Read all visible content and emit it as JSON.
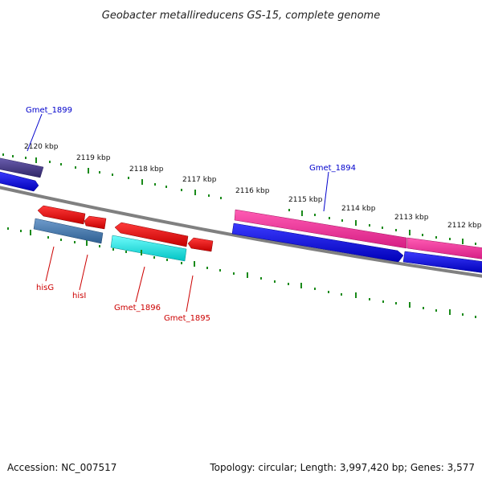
{
  "title": "Geobacter metallireducens GS-15, complete genome",
  "footer": {
    "accession": "Accession: NC_007517",
    "summary": "Topology: circular; Length: 3,997,420 bp; Genes: 3,577"
  },
  "scale_labels": [
    "2120 kbp",
    "2119 kbp",
    "2118 kbp",
    "2117 kbp",
    "2116 kbp",
    "2115 kbp",
    "2114 kbp",
    "2113 kbp",
    "2112 kbp"
  ],
  "genes": {
    "gmet_1899": {
      "label": "Gmet_1899",
      "color": "#0000cc"
    },
    "gmet_1894": {
      "label": "Gmet_1894",
      "color": "#0000cc"
    },
    "hisG": {
      "label": "hisG",
      "color": "#cc0000"
    },
    "hisI": {
      "label": "hisI",
      "color": "#cc0000"
    },
    "gmet_1896": {
      "label": "Gmet_1896",
      "color": "#cc0000"
    },
    "gmet_1895": {
      "label": "Gmet_1895",
      "color": "#cc0000"
    }
  },
  "colors": {
    "backbone": "#808080",
    "tick": "#1a8a1a",
    "forward_strand": "#0000ee",
    "reverse_strand": "#ee0000",
    "pink_feature": "#ff2c9c",
    "steel_feature": "#4a7fb5",
    "cyan_feature": "#00e5e5",
    "purple_feature": "#4b3d8a"
  }
}
